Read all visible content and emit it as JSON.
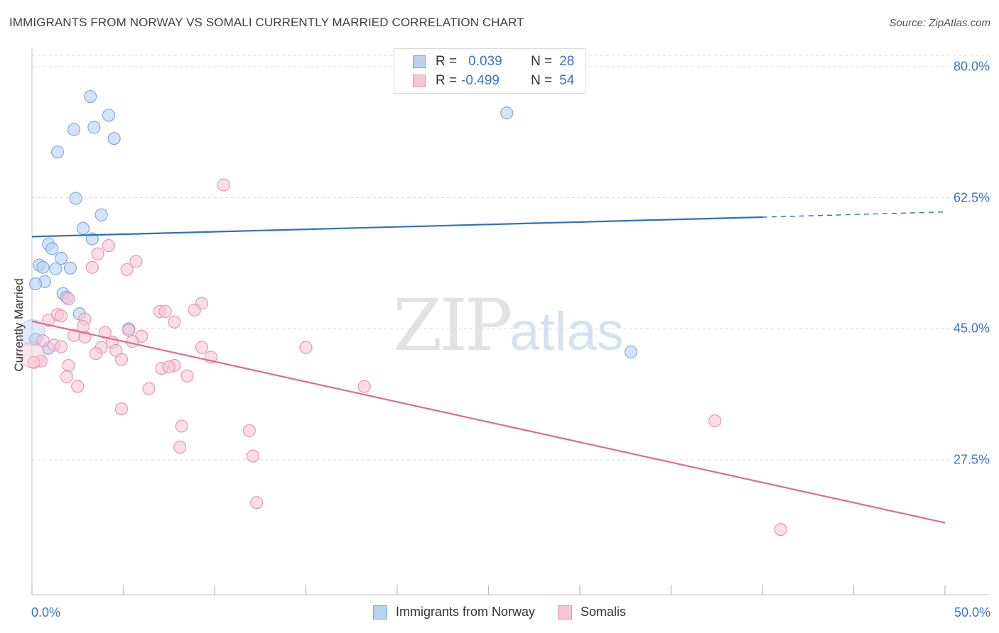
{
  "header": {
    "title": "IMMIGRANTS FROM NORWAY VS SOMALI CURRENTLY MARRIED CORRELATION CHART",
    "source": "Source: ZipAtlas.com"
  },
  "watermark": {
    "zip": "ZIP",
    "atlas": "atlas"
  },
  "legend_top": {
    "r_label": "R =",
    "n_label": "N =",
    "rows": [
      {
        "r": "0.039",
        "n": "28"
      },
      {
        "r": "-0.499",
        "n": "54"
      }
    ]
  },
  "colors": {
    "blue_fill": "#b8d2f0",
    "blue_stroke": "#7aa6de",
    "blue_line": "#2a6fcc",
    "pink_fill": "#f7c6d5",
    "pink_stroke": "#e891ae",
    "pink_line": "#e06a97",
    "axis_text": "#3a74c9",
    "grid": "#dddddd"
  },
  "chart_data": {
    "type": "scatter",
    "title": "IMMIGRANTS FROM NORWAY VS SOMALI CURRENTLY MARRIED CORRELATION CHART",
    "xlabel": "",
    "ylabel": "Currently Married",
    "xlim": [
      0,
      50
    ],
    "ylim": [
      9.5,
      81.5
    ],
    "x_tick_labels": [
      "0.0%",
      "50.0%"
    ],
    "y_ticks": [
      27.5,
      45.0,
      62.5,
      80.0
    ],
    "y_tick_labels": [
      "27.5%",
      "45.0%",
      "62.5%",
      "80.0%"
    ],
    "series": [
      {
        "name": "Immigrants from Norway",
        "r": 0.039,
        "n": 28,
        "trend": {
          "x0": 0,
          "y0": 57.3,
          "x1": 40,
          "y1": 59.9,
          "x_dash_end": 50,
          "y_dash_end": 60.6
        },
        "points": [
          [
            3.2,
            76.0
          ],
          [
            4.2,
            73.5
          ],
          [
            2.3,
            71.6
          ],
          [
            3.4,
            71.9
          ],
          [
            4.5,
            70.4
          ],
          [
            1.4,
            68.6
          ],
          [
            2.4,
            62.4
          ],
          [
            3.8,
            60.2
          ],
          [
            2.8,
            58.4
          ],
          [
            3.3,
            57.0
          ],
          [
            0.9,
            56.3
          ],
          [
            1.1,
            55.7
          ],
          [
            1.6,
            54.4
          ],
          [
            0.4,
            53.5
          ],
          [
            0.6,
            53.2
          ],
          [
            1.3,
            53.0
          ],
          [
            2.1,
            53.1
          ],
          [
            0.7,
            51.3
          ],
          [
            0.2,
            51.0
          ],
          [
            1.7,
            49.7
          ],
          [
            1.9,
            49.2
          ],
          [
            2.6,
            47.0
          ],
          [
            5.3,
            45.0
          ],
          [
            0.2,
            43.6
          ],
          [
            0.9,
            42.4
          ],
          [
            26.0,
            73.8
          ],
          [
            32.8,
            41.9
          ],
          [
            0.0,
            44.5
          ]
        ]
      },
      {
        "name": "Somalis",
        "r": -0.499,
        "n": 54,
        "trend": {
          "x0": 0,
          "y0": 46.0,
          "x1": 50,
          "y1": 19.1
        },
        "points": [
          [
            10.5,
            64.2
          ],
          [
            4.2,
            56.1
          ],
          [
            3.6,
            55.0
          ],
          [
            5.7,
            54.0
          ],
          [
            3.3,
            53.2
          ],
          [
            5.2,
            52.9
          ],
          [
            2.0,
            49.0
          ],
          [
            9.3,
            48.4
          ],
          [
            8.9,
            47.5
          ],
          [
            7.0,
            47.3
          ],
          [
            7.3,
            47.3
          ],
          [
            1.4,
            46.9
          ],
          [
            2.9,
            46.3
          ],
          [
            0.9,
            46.1
          ],
          [
            1.6,
            46.7
          ],
          [
            7.8,
            45.9
          ],
          [
            2.8,
            45.3
          ],
          [
            5.3,
            44.8
          ],
          [
            4.0,
            44.5
          ],
          [
            2.3,
            44.1
          ],
          [
            2.9,
            43.9
          ],
          [
            6.0,
            44.0
          ],
          [
            0.6,
            43.4
          ],
          [
            5.5,
            43.3
          ],
          [
            4.4,
            43.2
          ],
          [
            1.2,
            42.8
          ],
          [
            1.6,
            42.6
          ],
          [
            3.8,
            42.5
          ],
          [
            9.3,
            42.5
          ],
          [
            15.0,
            42.5
          ],
          [
            4.6,
            42.1
          ],
          [
            3.5,
            41.7
          ],
          [
            9.8,
            41.2
          ],
          [
            4.9,
            40.9
          ],
          [
            0.5,
            40.7
          ],
          [
            0.1,
            40.5
          ],
          [
            2.0,
            40.1
          ],
          [
            7.8,
            40.1
          ],
          [
            7.1,
            39.7
          ],
          [
            7.5,
            39.9
          ],
          [
            8.5,
            38.7
          ],
          [
            1.9,
            38.6
          ],
          [
            2.5,
            37.3
          ],
          [
            18.2,
            37.3
          ],
          [
            6.4,
            37.0
          ],
          [
            4.9,
            34.3
          ],
          [
            8.2,
            32.0
          ],
          [
            11.9,
            31.4
          ],
          [
            37.4,
            32.7
          ],
          [
            8.1,
            29.2
          ],
          [
            12.1,
            28.0
          ],
          [
            12.3,
            21.8
          ],
          [
            41.0,
            18.2
          ],
          [
            0.0,
            41.5
          ]
        ]
      }
    ]
  },
  "legend_bottom": [
    {
      "label": "Immigrants from Norway"
    },
    {
      "label": "Somalis"
    }
  ]
}
